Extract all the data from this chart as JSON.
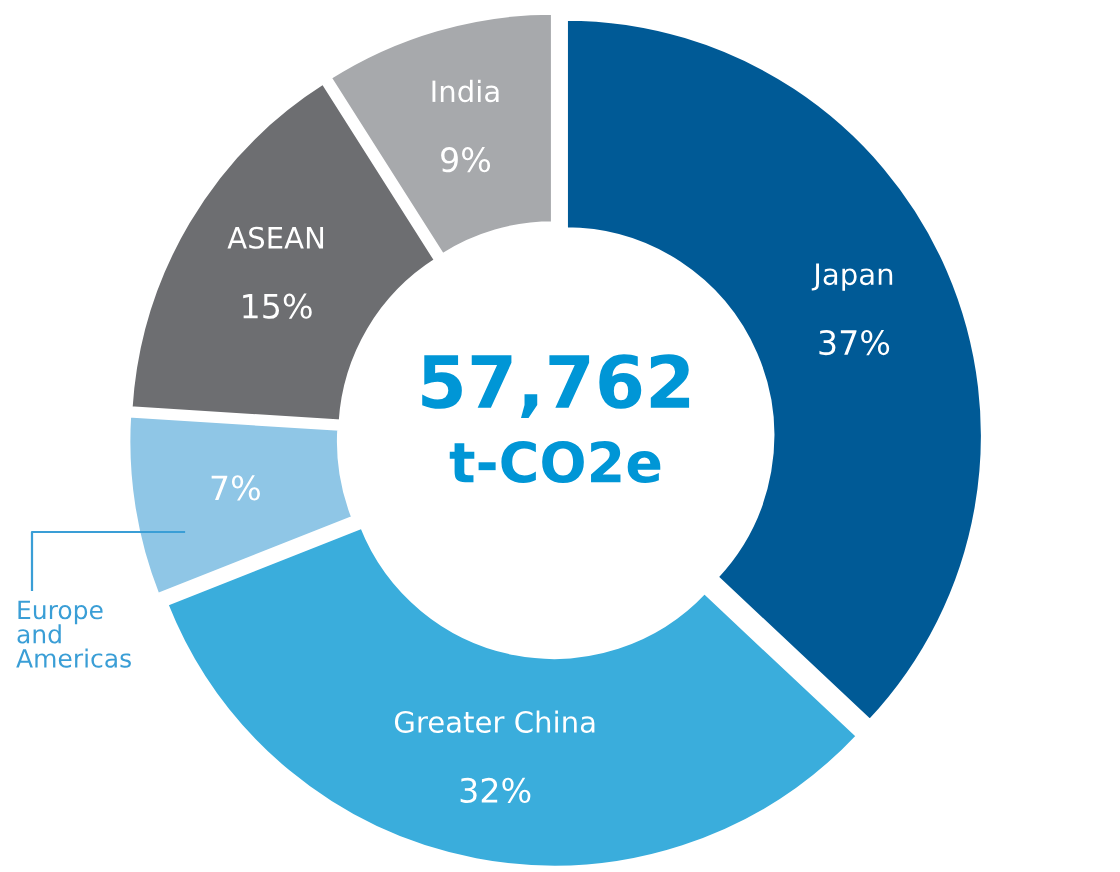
{
  "chart_data": {
    "type": "donut",
    "categories": [
      "Japan",
      "Greater China",
      "Europe and Americas",
      "ASEAN",
      "India"
    ],
    "values": [
      37,
      32,
      7,
      15,
      9
    ],
    "value_labels": [
      "37%",
      "32%",
      "7%",
      "15%",
      "9%"
    ],
    "colors": [
      "#005a96",
      "#3aaddc",
      "#8fc6e6",
      "#6d6e71",
      "#a7a9ac"
    ],
    "annotations": [
      "57,762",
      "t-CO2e"
    ],
    "legend": false
  }
}
